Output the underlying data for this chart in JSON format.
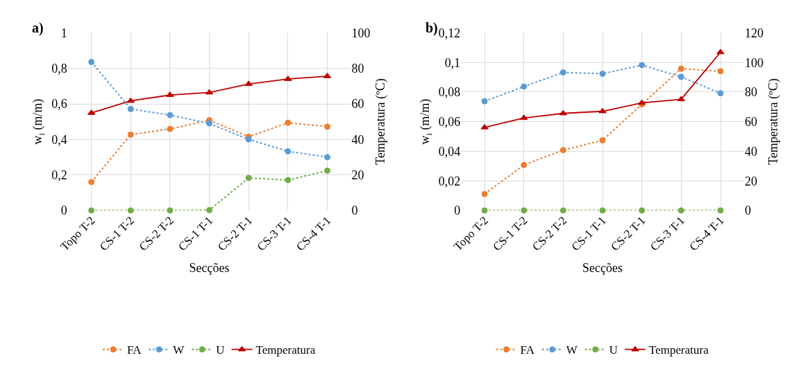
{
  "chart_data": [
    {
      "type": "line",
      "title": "a)",
      "xlabel": "Secções",
      "ylabel": "w$_{i}$ (m/m)",
      "y2label": "Temperatura (ºC)",
      "categories": [
        "Topo T-2",
        "CS-1 T-2",
        "CS-2 T-2",
        "CS-1 T-1",
        "CS-2 T-1",
        "CS-3 T-1",
        "CS-4 T-1"
      ],
      "series": [
        {
          "name": "FA",
          "color": "#ed7d31",
          "marker": "circle",
          "line_style": "dotted",
          "values": [
            0.16,
            0.427,
            0.459,
            0.508,
            0.415,
            0.494,
            0.472
          ]
        },
        {
          "name": "W",
          "color": "#5b9bd5",
          "marker": "circle",
          "line_style": "dotted",
          "values": [
            0.836,
            0.571,
            0.537,
            0.49,
            0.4,
            0.333,
            0.3
          ]
        },
        {
          "name": "U",
          "color": "#70ad47",
          "marker": "circle",
          "line_style": "dotted",
          "values": [
            0,
            0,
            0,
            0.002,
            0.183,
            0.171,
            0.224
          ]
        },
        {
          "name": "Temperatura",
          "color": "#c00000",
          "marker": "triangle",
          "line_style": "solid",
          "axis": "y2",
          "values": [
            54.9,
            61.7,
            65.0,
            66.4,
            71.2,
            74.0,
            75.6
          ]
        }
      ],
      "ylim": [
        0,
        1
      ],
      "yticks": [
        0,
        {
          "value": 0.2,
          "label": "0,2"
        },
        {
          "value": 0.4,
          "label": "0,4"
        },
        {
          "value": 0.6,
          "label": "0,6"
        },
        {
          "value": 0.8,
          "label": "0,8"
        },
        1
      ],
      "y2lim": [
        0,
        100
      ],
      "y2ticks": [
        0,
        20,
        40,
        60,
        80,
        100
      ],
      "grid": true,
      "legend": "bottom"
    },
    {
      "type": "line",
      "title": "b)",
      "xlabel": "Secções",
      "ylabel": "w$_{i}$ (m/m)",
      "y2label": "Temperatura (ºC)",
      "categories": [
        "Topo T-2",
        "CS-1 T-2",
        "CS-2 T-2",
        "CS-1 T-1",
        "CS-2 T-1",
        "CS-3 T-1",
        "CS-4 T-1"
      ],
      "series": [
        {
          "name": "FA",
          "color": "#ed7d31",
          "marker": "circle",
          "line_style": "dotted",
          "values": [
            0.0111,
            0.0307,
            0.0408,
            0.0474,
            0.0717,
            0.0958,
            0.0941
          ]
        },
        {
          "name": "W",
          "color": "#5b9bd5",
          "marker": "circle",
          "line_style": "dotted",
          "values": [
            0.0738,
            0.0837,
            0.0933,
            0.0924,
            0.0982,
            0.0903,
            0.0792
          ]
        },
        {
          "name": "U",
          "color": "#70ad47",
          "marker": "circle",
          "line_style": "dotted",
          "values": [
            0,
            0,
            0,
            0,
            0,
            0,
            0
          ]
        },
        {
          "name": "Temperatura",
          "color": "#c00000",
          "marker": "triangle",
          "line_style": "solid",
          "axis": "y2",
          "values": [
            56.1,
            62.5,
            65.6,
            67.0,
            72.7,
            75.1,
            106.9
          ]
        }
      ],
      "ylim": [
        0,
        0.12
      ],
      "yticks": [
        0,
        {
          "value": 0.02,
          "label": "0,02"
        },
        {
          "value": 0.04,
          "label": "0,04"
        },
        {
          "value": 0.06,
          "label": "0,06"
        },
        {
          "value": 0.08,
          "label": "0,08"
        },
        {
          "value": 0.1,
          "label": "0,1"
        },
        {
          "value": 0.12,
          "label": "0,12"
        }
      ],
      "y2lim": [
        0,
        120
      ],
      "y2ticks": [
        0,
        20,
        40,
        60,
        80,
        100,
        120
      ],
      "grid": true,
      "legend": "bottom"
    }
  ]
}
